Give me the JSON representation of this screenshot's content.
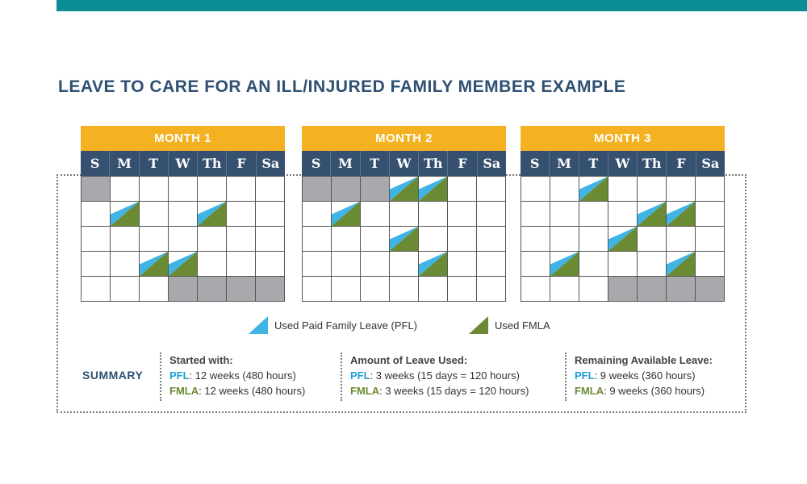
{
  "title": "LEAVE TO CARE FOR AN ILL/INJURED FAMILY MEMBER EXAMPLE",
  "colors": {
    "accent_bar": "#0a8f96",
    "month_header": "#f4b223",
    "dow_header": "#36506f",
    "pfl": "#3fb4e5",
    "fmla": "#6a8b33",
    "unavailable": "#a7a9ac"
  },
  "days_of_week": [
    "S",
    "M",
    "T",
    "W",
    "Th",
    "F",
    "Sa"
  ],
  "months": [
    {
      "label": "MONTH 1",
      "weeks": [
        [
          "gray",
          "",
          "",
          "",
          "",
          "",
          ""
        ],
        [
          "",
          "leave",
          "",
          "",
          "leave",
          "",
          ""
        ],
        [
          "",
          "",
          "",
          "",
          "",
          "",
          ""
        ],
        [
          "",
          "",
          "leave",
          "leave",
          "",
          "",
          ""
        ],
        [
          "",
          "",
          "",
          "gray",
          "gray",
          "gray",
          "gray"
        ]
      ]
    },
    {
      "label": "MONTH 2",
      "weeks": [
        [
          "gray",
          "gray",
          "gray",
          "leave",
          "leave",
          "",
          ""
        ],
        [
          "",
          "leave",
          "",
          "",
          "",
          "",
          ""
        ],
        [
          "",
          "",
          "",
          "leave",
          "",
          "",
          ""
        ],
        [
          "",
          "",
          "",
          "",
          "leave",
          "",
          ""
        ],
        [
          "",
          "",
          "",
          "",
          "",
          "",
          ""
        ]
      ]
    },
    {
      "label": "MONTH 3",
      "weeks": [
        [
          "",
          "",
          "leave",
          "",
          "",
          "",
          ""
        ],
        [
          "",
          "",
          "",
          "",
          "leave",
          "leave",
          ""
        ],
        [
          "",
          "",
          "",
          "leave",
          "",
          "",
          ""
        ],
        [
          "",
          "leave",
          "",
          "",
          "",
          "leave",
          ""
        ],
        [
          "",
          "",
          "",
          "gray",
          "gray",
          "gray",
          "gray"
        ]
      ]
    }
  ],
  "legend": {
    "pfl_label": "Used Paid Family Leave (PFL)",
    "fmla_label": "Used FMLA",
    "pfl_icon": "blue-triangle-icon",
    "fmla_icon": "green-triangle-icon"
  },
  "summary": {
    "label": "SUMMARY",
    "columns": [
      {
        "heading": "Started with:",
        "pfl_key": "PFL",
        "pfl_value": ": 12 weeks (480 hours)",
        "fmla_key": "FMLA",
        "fmla_value": ": 12 weeks (480 hours)"
      },
      {
        "heading": "Amount of Leave Used:",
        "pfl_key": "PFL",
        "pfl_value": ": 3 weeks (15 days = 120 hours)",
        "fmla_key": "FMLA",
        "fmla_value": ": 3 weeks (15 days = 120 hours)"
      },
      {
        "heading": "Remaining Available Leave:",
        "pfl_key": "PFL",
        "pfl_value": ": 9 weeks (360 hours)",
        "fmla_key": "FMLA",
        "fmla_value": ": 9 weeks (360 hours)"
      }
    ]
  }
}
